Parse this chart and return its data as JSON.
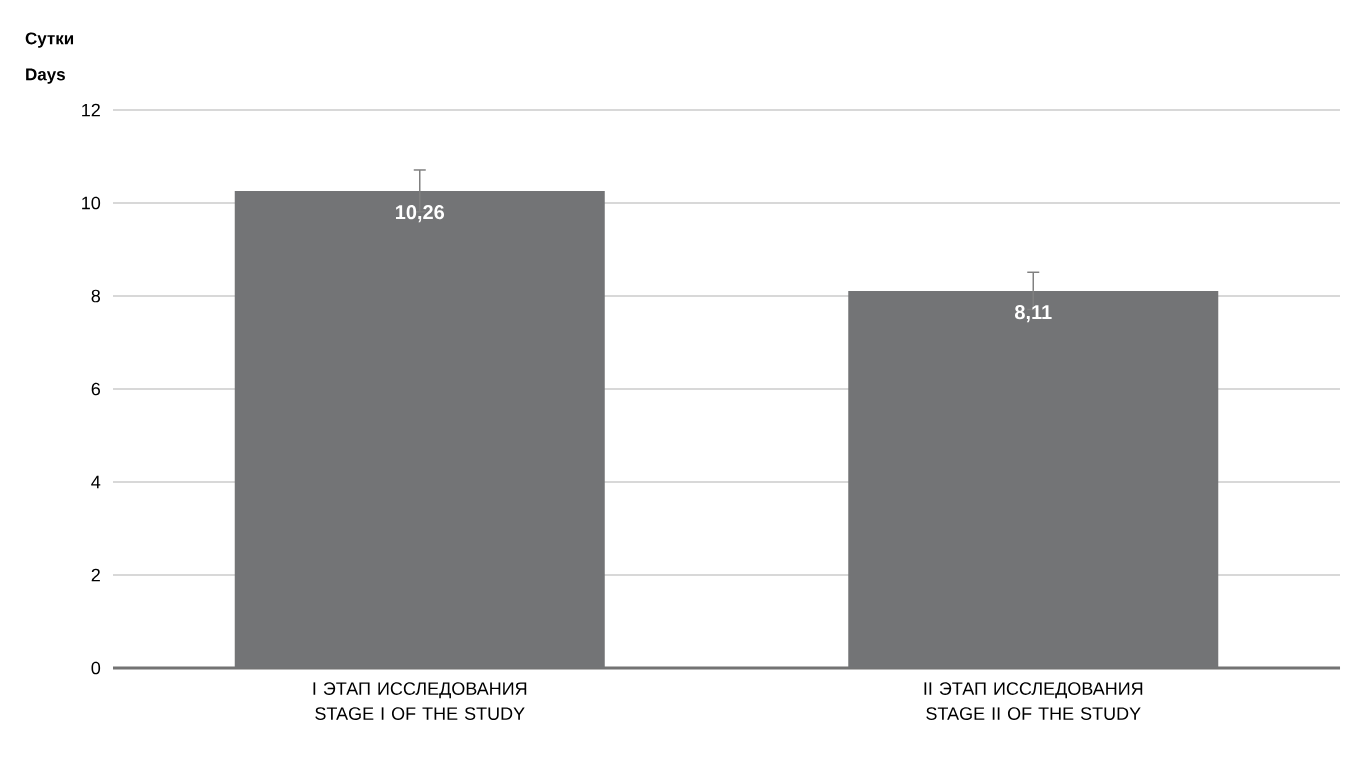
{
  "chart_data": {
    "type": "bar",
    "ylabel": "Сутки Days",
    "categories": [
      "I ЭТАП ИССЛЕДОВАНИЯ STAGE I OF THE STUDY",
      "II ЭТАП ИССЛЕДОВАНИЯ STAGE II OF THE STUDY"
    ],
    "values": [
      10.26,
      8.11
    ],
    "errors": [
      0.45,
      0.4
    ],
    "value_labels": [
      "10,26",
      "8,11"
    ],
    "color": "#737476",
    "ylim": [
      0,
      12
    ],
    "yticks": [
      0,
      2,
      4,
      6,
      8,
      10,
      12
    ],
    "grid": "y"
  }
}
